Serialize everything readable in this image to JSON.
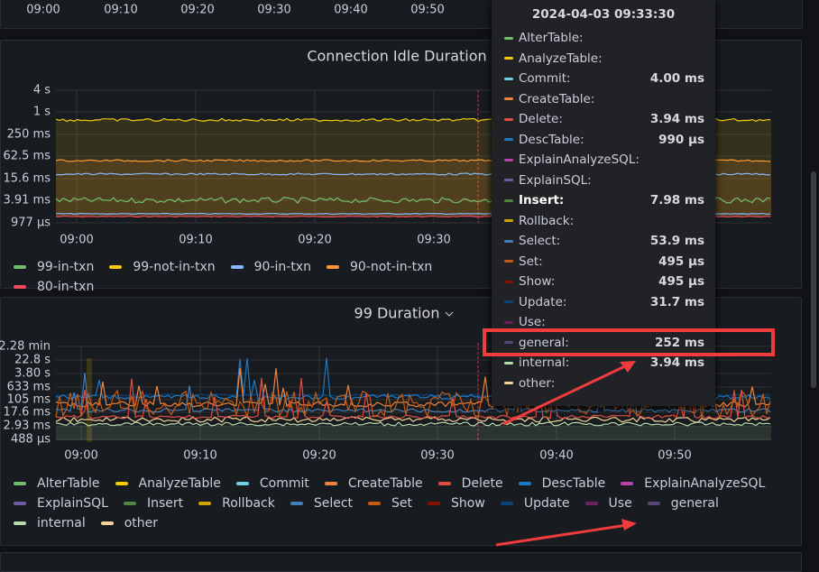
{
  "top_axis": {
    "x_labels": [
      "09:00",
      "09:10",
      "09:20",
      "09:30",
      "09:40",
      "09:50"
    ]
  },
  "panels": [
    {
      "title": "Connection Idle Duration",
      "y_labels": [
        "4 s",
        "1 s",
        "250 ms",
        "62.5 ms",
        "15.6 ms",
        "3.91 ms",
        "977 µs"
      ],
      "x_labels": [
        "09:00",
        "09:10",
        "09:20",
        "09:30"
      ],
      "legend": [
        {
          "name": "99-in-txn",
          "color": "#73bf69"
        },
        {
          "name": "99-not-in-txn",
          "color": "#f2cc0c"
        },
        {
          "name": "90-in-txn",
          "color": "#8ab8ff"
        },
        {
          "name": "90-not-in-txn",
          "color": "#ff9830"
        },
        {
          "name": "80-in-txn",
          "color": "#f2495c"
        }
      ]
    },
    {
      "title": "99 Duration",
      "y_labels": [
        "2.28 min",
        "22.8 s",
        "3.80 s",
        "633 ms",
        "105 ms",
        "17.6 ms",
        "2.93 ms",
        "488 µs"
      ],
      "x_labels": [
        "09:00",
        "09:10",
        "09:20",
        "09:30",
        "09:40",
        "09:50"
      ],
      "legend": [
        {
          "name": "AlterTable",
          "color": "#73bf69"
        },
        {
          "name": "AnalyzeTable",
          "color": "#f2cc0c"
        },
        {
          "name": "Commit",
          "color": "#6ed0e0"
        },
        {
          "name": "CreateTable",
          "color": "#ef843c"
        },
        {
          "name": "Delete",
          "color": "#e24d42"
        },
        {
          "name": "DescTable",
          "color": "#1f78c1"
        },
        {
          "name": "ExplainAnalyzeSQL",
          "color": "#ba43a9"
        },
        {
          "name": "ExplainSQL",
          "color": "#705da0"
        },
        {
          "name": "Insert",
          "color": "#508642"
        },
        {
          "name": "Rollback",
          "color": "#cca300"
        },
        {
          "name": "Select",
          "color": "#447ebc"
        },
        {
          "name": "Set",
          "color": "#c15c17"
        },
        {
          "name": "Show",
          "color": "#890f02"
        },
        {
          "name": "Update",
          "color": "#0a437c"
        },
        {
          "name": "Use",
          "color": "#6d1f62"
        },
        {
          "name": "general",
          "color": "#584477"
        },
        {
          "name": "internal",
          "color": "#b7dbab"
        },
        {
          "name": "other",
          "color": "#f4d598"
        }
      ]
    }
  ],
  "tooltip": {
    "time": "2024-04-03 09:33:30",
    "rows": [
      {
        "name": "AlterTable:",
        "color": "#73bf69"
      },
      {
        "name": "AnalyzeTable:",
        "color": "#f2cc0c"
      },
      {
        "name": "Commit:",
        "value": "4.00 ms",
        "color": "#6ed0e0"
      },
      {
        "name": "CreateTable:",
        "color": "#ef843c"
      },
      {
        "name": "Delete:",
        "value": "3.94 ms",
        "color": "#e24d42"
      },
      {
        "name": "DescTable:",
        "value": "990 µs",
        "color": "#1f78c1"
      },
      {
        "name": "ExplainAnalyzeSQL:",
        "color": "#ba43a9"
      },
      {
        "name": "ExplainSQL:",
        "color": "#705da0"
      },
      {
        "name": "Insert:",
        "value": "7.98 ms",
        "color": "#508642",
        "bold": true
      },
      {
        "name": "Rollback:",
        "color": "#cca300"
      },
      {
        "name": "Select:",
        "value": "53.9 ms",
        "color": "#447ebc"
      },
      {
        "name": "Set:",
        "value": "495 µs",
        "color": "#c15c17"
      },
      {
        "name": "Show:",
        "value": "495 µs",
        "color": "#890f02"
      },
      {
        "name": "Update:",
        "value": "31.7 ms",
        "color": "#0a437c"
      },
      {
        "name": "Use:",
        "color": "#6d1f62"
      },
      {
        "name": "general:",
        "value": "252 ms",
        "color": "#584477"
      },
      {
        "name": "internal:",
        "value": "3.94 ms",
        "color": "#b7dbab"
      },
      {
        "name": "other:",
        "color": "#f4d598"
      }
    ]
  }
}
